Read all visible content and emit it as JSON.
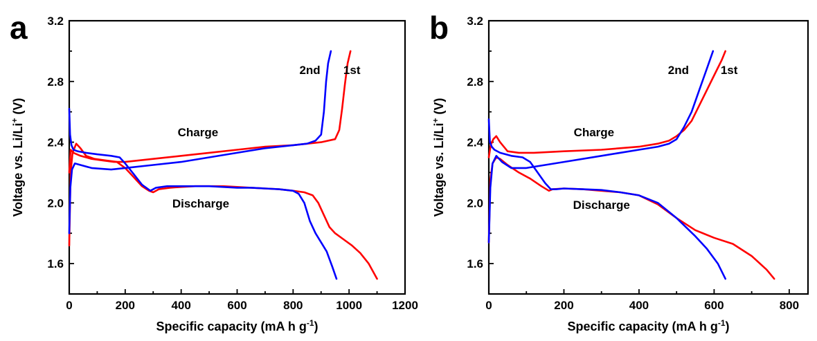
{
  "figure": {
    "panels": [
      {
        "letter": "a"
      },
      {
        "letter": "b"
      }
    ]
  },
  "chart_data": [
    {
      "type": "line",
      "panel": "a",
      "xlabel": "Specific capacity (mA h g^-1)",
      "xlabel_main": "Specific capacity (mA h g",
      "xlabel_sup": "-1",
      "xlabel_tail": ")",
      "ylabel": "Voltage vs. Li/Li+ (V)",
      "ylabel_main": "Voltage vs. Li/Li",
      "ylabel_sup": "+",
      "ylabel_tail": " (V)",
      "xlim": [
        0,
        1200
      ],
      "ylim": [
        1.4,
        3.2
      ],
      "xticks": [
        0,
        200,
        400,
        600,
        800,
        1000,
        1200
      ],
      "yticks": [
        1.6,
        2.0,
        2.4,
        2.8,
        3.2
      ],
      "ytick_labels": [
        "1.6",
        "2.0",
        "2.4",
        "2.8",
        "3.2"
      ],
      "annotations": [
        {
          "text": "2nd",
          "x": 860,
          "y": 2.85
        },
        {
          "text": "1st",
          "x": 1010,
          "y": 2.85
        },
        {
          "text": "Charge",
          "x": 460,
          "y": 2.44
        },
        {
          "text": "Discharge",
          "x": 470,
          "y": 1.97
        }
      ],
      "series": [
        {
          "color": "#ff0000",
          "segments": [
            {
              "label": "discharge",
              "x": [
                0,
                5,
                12,
                25,
                40,
                60,
                90,
                130,
                170,
                200,
                230,
                260,
                285,
                300,
                320,
                360,
                400,
                450,
                500,
                550,
                600,
                650,
                700,
                750,
                800,
                840,
                870,
                890,
                910,
                930,
                950,
                980,
                1010,
                1040,
                1070,
                1100
              ],
              "y": [
                1.72,
                2.2,
                2.33,
                2.39,
                2.36,
                2.31,
                2.29,
                2.28,
                2.27,
                2.23,
                2.17,
                2.11,
                2.08,
                2.07,
                2.09,
                2.1,
                2.105,
                2.11,
                2.11,
                2.11,
                2.105,
                2.1,
                2.095,
                2.09,
                2.08,
                2.07,
                2.05,
                2.0,
                1.92,
                1.84,
                1.8,
                1.76,
                1.72,
                1.67,
                1.6,
                1.5
              ]
            },
            {
              "label": "charge",
              "x": [
                0,
                5,
                15,
                40,
                80,
                120,
                160,
                200,
                300,
                400,
                500,
                600,
                700,
                800,
                900,
                950,
                965,
                975,
                985,
                995,
                1005
              ],
              "y": [
                2.2,
                2.35,
                2.33,
                2.31,
                2.29,
                2.28,
                2.27,
                2.27,
                2.29,
                2.31,
                2.33,
                2.35,
                2.37,
                2.38,
                2.4,
                2.42,
                2.48,
                2.62,
                2.78,
                2.92,
                3.0
              ]
            }
          ]
        },
        {
          "color": "#0000ff",
          "segments": [
            {
              "label": "discharge",
              "x": [
                0,
                3,
                8,
                15,
                30,
                60,
                100,
                150,
                180,
                200,
                230,
                260,
                290,
                310,
                350,
                400,
                450,
                500,
                550,
                600,
                650,
                700,
                750,
                800,
                820,
                840,
                860,
                880,
                900,
                920,
                940,
                955
              ],
              "y": [
                2.62,
                2.45,
                2.38,
                2.35,
                2.34,
                2.33,
                2.32,
                2.31,
                2.3,
                2.26,
                2.19,
                2.12,
                2.08,
                2.1,
                2.11,
                2.11,
                2.11,
                2.11,
                2.105,
                2.1,
                2.1,
                2.095,
                2.09,
                2.08,
                2.06,
                2.0,
                1.88,
                1.8,
                1.74,
                1.68,
                1.58,
                1.5
              ]
            },
            {
              "label": "charge",
              "x": [
                0,
                4,
                10,
                20,
                40,
                80,
                150,
                200,
                300,
                400,
                500,
                600,
                700,
                800,
                850,
                880,
                900,
                910,
                918,
                925,
                935
              ],
              "y": [
                1.8,
                2.1,
                2.22,
                2.26,
                2.25,
                2.23,
                2.22,
                2.23,
                2.25,
                2.27,
                2.3,
                2.33,
                2.36,
                2.38,
                2.39,
                2.41,
                2.45,
                2.6,
                2.8,
                2.92,
                3.0
              ]
            }
          ]
        }
      ]
    },
    {
      "type": "line",
      "panel": "b",
      "xlabel": "Specific capacity (mA h g^-1)",
      "xlabel_main": "Specific capacity (mA h g",
      "xlabel_sup": "-1",
      "xlabel_tail": ")",
      "ylabel": "Voltage vs. Li/Li+ (V)",
      "ylabel_main": "Voltage vs. Li/Li",
      "ylabel_sup": "+",
      "ylabel_tail": " (V)",
      "xlim": [
        0,
        850
      ],
      "ylim": [
        1.4,
        3.2
      ],
      "xticks": [
        0,
        200,
        400,
        600,
        800
      ],
      "yticks": [
        1.6,
        2.0,
        2.4,
        2.8,
        3.2
      ],
      "ytick_labels": [
        "1.6",
        "2.0",
        "2.4",
        "2.8",
        "3.2"
      ],
      "annotations": [
        {
          "text": "2nd",
          "x": 505,
          "y": 2.85
        },
        {
          "text": "1st",
          "x": 640,
          "y": 2.85
        },
        {
          "text": "Charge",
          "x": 280,
          "y": 2.44
        },
        {
          "text": "Discharge",
          "x": 300,
          "y": 1.96
        }
      ],
      "series": [
        {
          "color": "#ff0000",
          "segments": [
            {
              "label": "discharge",
              "x": [
                0,
                4,
                10,
                20,
                30,
                50,
                80,
                110,
                140,
                160,
                170,
                200,
                250,
                300,
                350,
                400,
                450,
                500,
                550,
                600,
                650,
                700,
                740,
                760
              ],
              "y": [
                1.74,
                2.15,
                2.26,
                2.3,
                2.29,
                2.25,
                2.2,
                2.16,
                2.11,
                2.08,
                2.09,
                2.095,
                2.09,
                2.08,
                2.07,
                2.05,
                1.99,
                1.9,
                1.82,
                1.77,
                1.73,
                1.65,
                1.56,
                1.5
              ]
            },
            {
              "label": "charge",
              "x": [
                0,
                5,
                12,
                20,
                30,
                50,
                80,
                120,
                200,
                300,
                400,
                450,
                480,
                500,
                520,
                540,
                560,
                580,
                600,
                620,
                630
              ],
              "y": [
                2.3,
                2.38,
                2.42,
                2.44,
                2.4,
                2.34,
                2.33,
                2.33,
                2.34,
                2.35,
                2.37,
                2.39,
                2.41,
                2.44,
                2.48,
                2.54,
                2.64,
                2.74,
                2.84,
                2.94,
                3.0
              ]
            }
          ]
        },
        {
          "color": "#0000ff",
          "segments": [
            {
              "label": "discharge",
              "x": [
                0,
                3,
                8,
                15,
                30,
                60,
                90,
                110,
                130,
                150,
                165,
                180,
                200,
                250,
                300,
                350,
                400,
                450,
                500,
                550,
                580,
                610,
                630
              ],
              "y": [
                2.55,
                2.4,
                2.37,
                2.35,
                2.33,
                2.31,
                2.3,
                2.27,
                2.2,
                2.13,
                2.09,
                2.09,
                2.095,
                2.09,
                2.085,
                2.07,
                2.05,
                2.0,
                1.9,
                1.78,
                1.7,
                1.6,
                1.5
              ]
            },
            {
              "label": "charge",
              "x": [
                0,
                4,
                10,
                20,
                35,
                60,
                100,
                150,
                200,
                300,
                400,
                450,
                480,
                500,
                520,
                540,
                560,
                580,
                597
              ],
              "y": [
                1.74,
                2.1,
                2.26,
                2.31,
                2.27,
                2.23,
                2.23,
                2.25,
                2.27,
                2.31,
                2.35,
                2.37,
                2.39,
                2.42,
                2.5,
                2.6,
                2.74,
                2.88,
                3.0
              ]
            }
          ]
        }
      ]
    }
  ]
}
